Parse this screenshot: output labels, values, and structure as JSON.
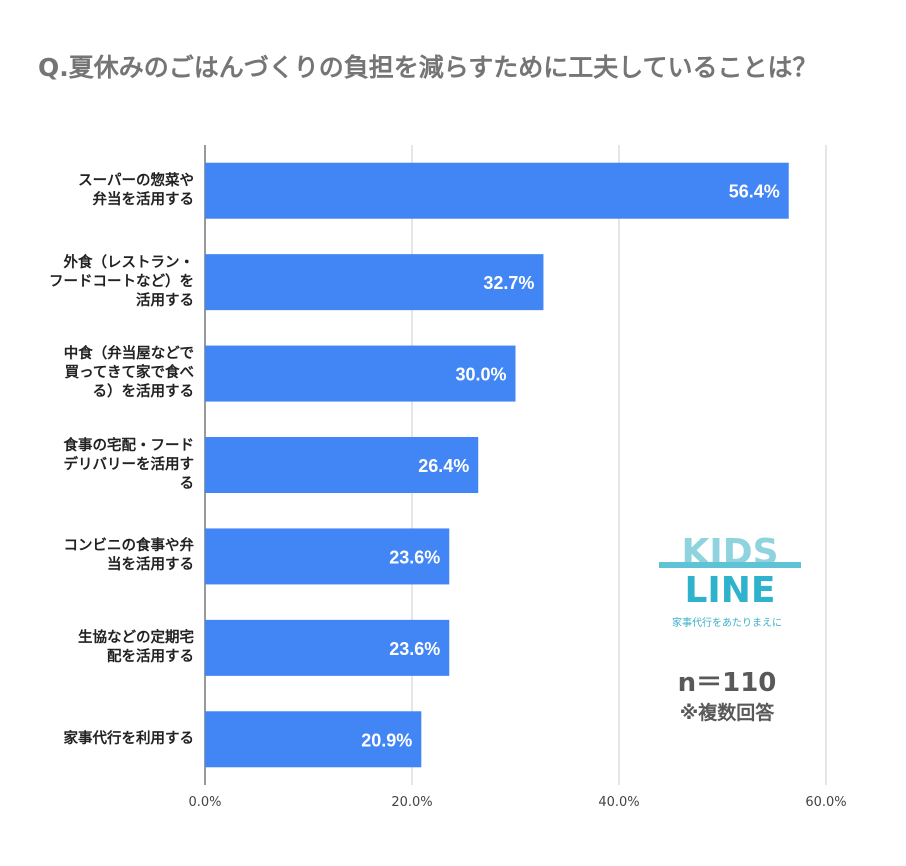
{
  "chart_data": {
    "type": "bar",
    "orientation": "horizontal",
    "title": "Q.夏休みのごはんづくりの負担を減らすために工夫していることは？",
    "categories": [
      "スーパーの惣菜や\n弁当を活用する",
      "外食（レストラン・\nフードコートなど）を\n活用する",
      "中食（弁当屋などで\n買ってきて家で食べ\nる）を活用する",
      "食事の宅配・フード\nデリバリーを活用す\nる",
      "コンビニの食事や弁\n当を活用する",
      "生協などの定期宅\n配を活用する",
      "家事代行を利用する"
    ],
    "values": [
      56.4,
      32.7,
      30.0,
      26.4,
      23.6,
      23.6,
      20.9
    ],
    "data_labels": [
      "56.4%",
      "32.7%",
      "30.0%",
      "26.4%",
      "23.6%",
      "23.6%",
      "20.9%"
    ],
    "xlim": [
      0,
      60
    ],
    "x_ticks": [
      "0.0%",
      "20.0%",
      "40.0%",
      "60.0%"
    ],
    "grid": true,
    "bar_color": "#4285f4"
  },
  "note": {
    "n": "n＝110",
    "multi": "※複数回答"
  },
  "logo": {
    "text": "KIDS LINE",
    "tagline": "家事代行をあたりまえに",
    "color": "#3bb0c9"
  }
}
